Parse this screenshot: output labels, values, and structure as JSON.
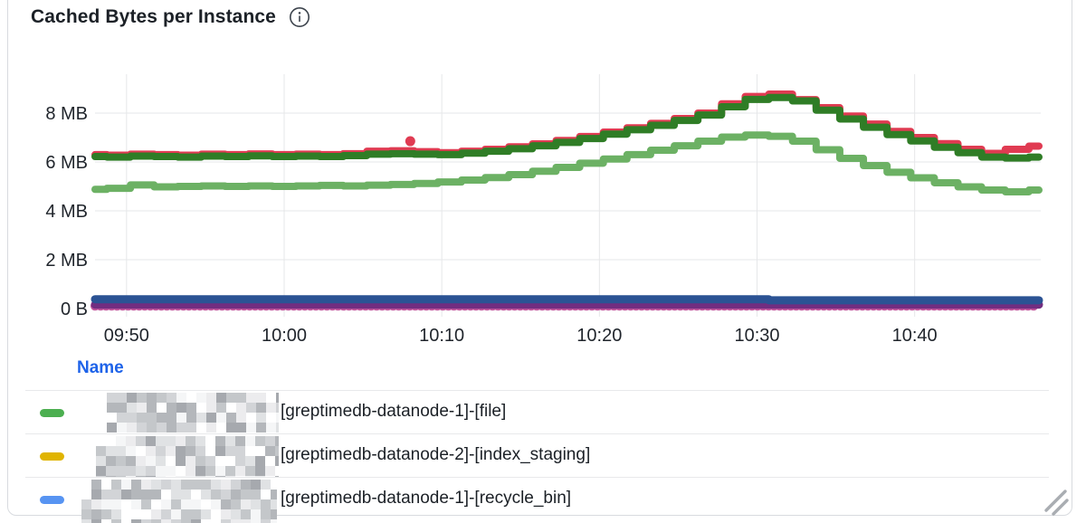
{
  "panel": {
    "title": "Cached Bytes per Instance",
    "info_icon": "info-icon"
  },
  "colors": {
    "border": "#d8dbdf",
    "grid": "#e6e7e9",
    "axis_text": "#1f242b",
    "link_blue": "#1e63e9",
    "title_text": "#1c2127",
    "info_icon": "#3c434c",
    "resize_handle": "#a9adb2"
  },
  "chart_data": {
    "type": "scatter",
    "title": "Cached Bytes per Instance",
    "xlabel": "",
    "ylabel": "",
    "y_unit": "MB",
    "ylim_mb": [
      0,
      9.9
    ],
    "x_window": [
      "09:48",
      "10:48"
    ],
    "step_minutes": 1.5,
    "grid": true,
    "y_ticks": [
      {
        "mb": 8,
        "label": "8 MB"
      },
      {
        "mb": 6,
        "label": "6 MB"
      },
      {
        "mb": 4,
        "label": "4 MB"
      },
      {
        "mb": 2,
        "label": "2 MB"
      },
      {
        "mb": 0,
        "label": "0 B"
      }
    ],
    "x_ticks": [
      {
        "minute": 2,
        "label": "09:50"
      },
      {
        "minute": 12,
        "label": "10:00"
      },
      {
        "minute": 22,
        "label": "10:10"
      },
      {
        "minute": 32,
        "label": "10:20"
      },
      {
        "minute": 42,
        "label": "10:30"
      },
      {
        "minute": 52,
        "label": "10:40"
      }
    ],
    "series": [
      {
        "name": "red",
        "color": "#e03b52",
        "width": 8,
        "values_mb": [
          6.3,
          6.28,
          6.32,
          6.3,
          6.28,
          6.32,
          6.3,
          6.33,
          6.3,
          6.32,
          6.3,
          6.34,
          6.44,
          6.46,
          6.42,
          6.38,
          6.44,
          6.52,
          6.62,
          6.74,
          6.88,
          7.04,
          7.22,
          7.4,
          7.58,
          7.78,
          8.0,
          8.38,
          8.68,
          8.78,
          8.55,
          8.22,
          7.88,
          7.55,
          7.25,
          7.0,
          6.75,
          6.52,
          6.35,
          6.52,
          6.65
        ]
      },
      {
        "name": "dark-green",
        "color": "#2f7d26",
        "width": 8,
        "values_mb": [
          6.22,
          6.2,
          6.24,
          6.22,
          6.2,
          6.24,
          6.22,
          6.25,
          6.22,
          6.24,
          6.22,
          6.26,
          6.32,
          6.34,
          6.32,
          6.3,
          6.36,
          6.44,
          6.54,
          6.66,
          6.8,
          6.96,
          7.14,
          7.32,
          7.5,
          7.7,
          7.92,
          8.26,
          8.56,
          8.64,
          8.5,
          8.12,
          7.76,
          7.42,
          7.12,
          6.86,
          6.6,
          6.38,
          6.2,
          6.16,
          6.2
        ]
      },
      {
        "name": "light-green",
        "color": "#6cb164",
        "width": 8,
        "values_mb": [
          4.88,
          4.92,
          5.06,
          4.98,
          5.0,
          5.02,
          5.0,
          5.02,
          5.0,
          5.02,
          5.04,
          5.02,
          5.05,
          5.08,
          5.12,
          5.18,
          5.26,
          5.36,
          5.48,
          5.62,
          5.78,
          5.95,
          6.12,
          6.3,
          6.48,
          6.66,
          6.85,
          7.02,
          7.1,
          7.05,
          6.85,
          6.5,
          6.15,
          5.85,
          5.58,
          5.35,
          5.15,
          4.98,
          4.85,
          4.78,
          4.85
        ]
      },
      {
        "name": "magenta",
        "color": "#c2559c",
        "width": 10,
        "dotted": true,
        "values_mb": [
          0.1,
          0.1,
          0.1,
          0.1,
          0.1,
          0.1,
          0.1,
          0.1,
          0.1,
          0.1,
          0.1,
          0.1,
          0.1,
          0.1,
          0.1,
          0.1,
          0.1,
          0.1,
          0.1,
          0.1,
          0.1,
          0.1,
          0.1,
          0.1,
          0.1,
          0.1,
          0.1,
          0.1,
          0.1,
          0.1,
          0.1,
          0.1,
          0.1,
          0.1,
          0.1,
          0.1,
          0.1,
          0.1,
          0.1,
          0.1,
          0.1
        ]
      },
      {
        "name": "purple",
        "color": "#722d80",
        "width": 9,
        "values_mb": [
          0.16,
          0.16,
          0.16,
          0.16,
          0.16,
          0.16,
          0.16,
          0.16,
          0.16,
          0.16,
          0.16,
          0.16,
          0.16,
          0.16,
          0.16,
          0.16,
          0.16,
          0.16,
          0.16,
          0.16,
          0.16,
          0.16,
          0.16,
          0.16,
          0.16,
          0.16,
          0.16,
          0.16,
          0.16,
          0.16,
          0.16,
          0.16,
          0.16,
          0.16,
          0.16,
          0.16,
          0.16,
          0.16,
          0.16,
          0.16,
          0.16
        ]
      },
      {
        "name": "dark-blue",
        "color": "#2b5394",
        "width": 9,
        "values_mb": [
          0.38,
          0.38,
          0.38,
          0.38,
          0.38,
          0.38,
          0.38,
          0.38,
          0.38,
          0.38,
          0.38,
          0.38,
          0.38,
          0.38,
          0.38,
          0.38,
          0.38,
          0.38,
          0.38,
          0.38,
          0.38,
          0.38,
          0.38,
          0.38,
          0.38,
          0.38,
          0.38,
          0.38,
          0.38,
          0.34,
          0.34,
          0.34,
          0.34,
          0.34,
          0.34,
          0.34,
          0.34,
          0.34,
          0.34,
          0.34,
          0.34
        ]
      }
    ],
    "outlier": {
      "series": "red",
      "minute": 20,
      "value_mb": 6.85
    },
    "legend_position": "bottom-table"
  },
  "legend": {
    "name_header": "Name",
    "rows": [
      {
        "marker_color": "#4caf50",
        "redacted_prefix": true,
        "label": "[greptimedb-datanode-1]-[file]"
      },
      {
        "marker_color": "#e0b400",
        "redacted_prefix": true,
        "label": "[greptimedb-datanode-2]-[index_staging]"
      },
      {
        "marker_color": "#5794f2",
        "redacted_prefix": true,
        "label": "[greptimedb-datanode-1]-[recycle_bin]"
      }
    ]
  }
}
